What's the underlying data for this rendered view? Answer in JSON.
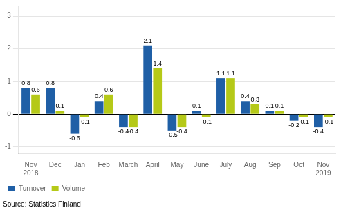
{
  "chart_data": {
    "type": "bar",
    "categories": [
      "Nov\n2018",
      "Dec",
      "Jan",
      "Feb",
      "March",
      "April",
      "May",
      "June",
      "July",
      "Aug",
      "Sep",
      "Oct",
      "Nov\n2019"
    ],
    "series": [
      {
        "name": "Turnover",
        "color": "#1f5fa6",
        "values": [
          0.8,
          0.8,
          -0.6,
          0.4,
          -0.4,
          2.1,
          -0.5,
          0.1,
          1.1,
          0.4,
          0.1,
          -0.2,
          -0.4
        ]
      },
      {
        "name": "Volume",
        "color": "#b5c918",
        "values": [
          0.6,
          0.1,
          -0.1,
          0.6,
          -0.4,
          1.4,
          -0.4,
          -0.1,
          1.1,
          0.3,
          0.1,
          -0.1,
          -0.1
        ]
      }
    ],
    "ylim": [
      -1.2,
      3.3
    ],
    "yticks": [
      -1,
      0,
      1,
      2,
      3
    ],
    "grid": true,
    "legend": "lower left",
    "data_labels": true,
    "annotations": [
      "Source: Statistics Finland"
    ]
  }
}
